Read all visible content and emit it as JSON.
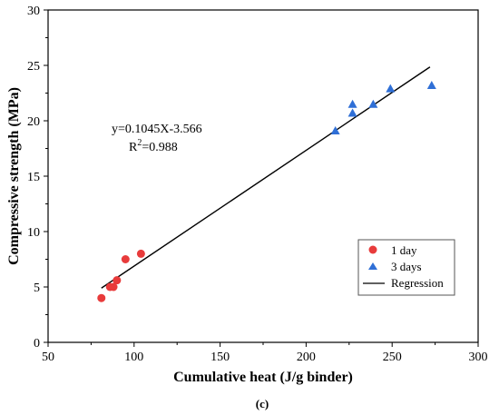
{
  "chart_data": {
    "type": "scatter",
    "xlabel": "Cumulative heat (J/g binder)",
    "ylabel": "Compressive strength (MPa)",
    "xlim": [
      50,
      300
    ],
    "ylim": [
      0,
      30
    ],
    "xticks": [
      "50",
      "100",
      "150",
      "200",
      "250",
      "300"
    ],
    "yticks": [
      "0",
      "5",
      "10",
      "15",
      "20",
      "25",
      "30"
    ],
    "grid": false,
    "legend_position": "bottom-right",
    "series": [
      {
        "name": "1 day",
        "marker": "circle",
        "color": "#e83b3b",
        "points": [
          [
            81,
            4.0
          ],
          [
            86,
            5.0
          ],
          [
            88,
            5.0
          ],
          [
            90,
            5.6
          ],
          [
            95,
            7.5
          ],
          [
            104,
            8.0
          ]
        ]
      },
      {
        "name": "3 days",
        "marker": "triangle",
        "color": "#2f6fd6",
        "points": [
          [
            217,
            19.1
          ],
          [
            227,
            20.7
          ],
          [
            227,
            21.5
          ],
          [
            239,
            21.5
          ],
          [
            249,
            22.9
          ],
          [
            273,
            23.2
          ]
        ]
      },
      {
        "name": "Regression",
        "marker": "line",
        "color": "#000000",
        "line": [
          [
            81,
            4.898
          ],
          [
            272,
            24.858
          ]
        ]
      }
    ],
    "annotation": {
      "equation": "y=0.1045X-3.566",
      "r2_prefix": "R",
      "r2_sup": "2",
      "r2_value": "=0.988"
    },
    "caption": "(c)"
  }
}
